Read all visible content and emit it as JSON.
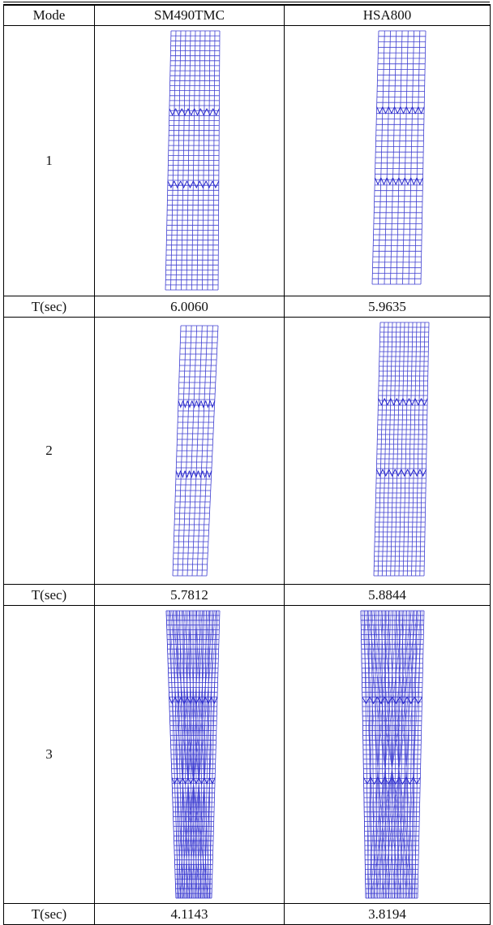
{
  "table": {
    "header": [
      "Mode",
      "SM490TMC",
      "HSA800"
    ],
    "rows": [
      [
        "1"
      ],
      [
        "T(sec)",
        "6.0060",
        "5.9635"
      ],
      [
        "2"
      ],
      [
        "T(sec)",
        "5.7812",
        "5.8844"
      ],
      [
        "3"
      ],
      [
        "T(sec)",
        "4.1143",
        "3.8194"
      ]
    ]
  }
}
